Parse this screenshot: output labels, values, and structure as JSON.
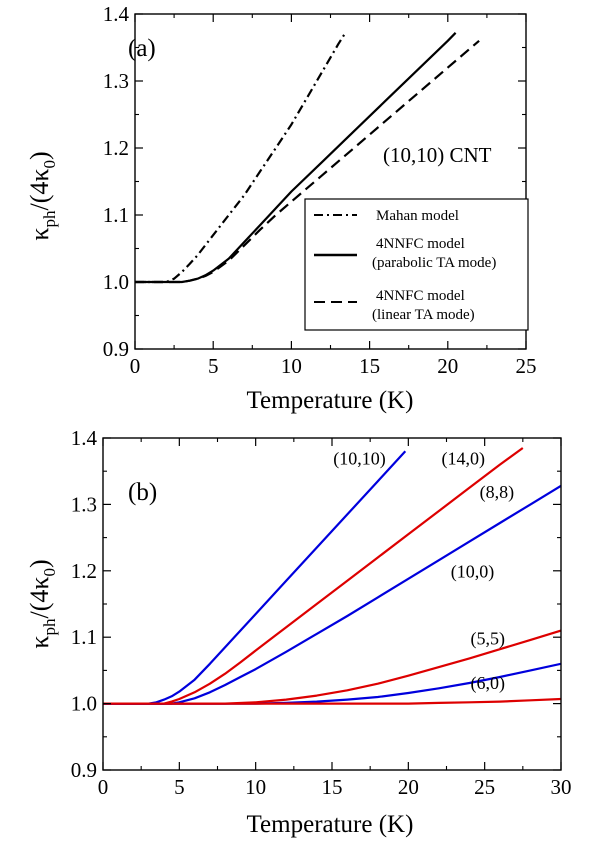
{
  "chart_data": [
    {
      "type": "line",
      "panel_label": "(a)",
      "annotation": "(10,10) CNT",
      "xlabel": "Temperature (K)",
      "ylabel": {
        "main": "κ",
        "sub": "ph",
        "tail": "/(4κ",
        "sub2": "0",
        "end": ")"
      },
      "xlim": [
        0,
        25
      ],
      "ylim": [
        0.9,
        1.4
      ],
      "xticks": [
        "0",
        "5",
        "10",
        "15",
        "20",
        "25"
      ],
      "yticks": [
        "0.9",
        "1.0",
        "1.1",
        "1.2",
        "1.3",
        "1.4"
      ],
      "legend_position": "lower-right",
      "series": [
        {
          "name": "Mahan model",
          "dash": "dashdot",
          "color": "#000000",
          "points": [
            [
              0,
              1.0
            ],
            [
              2,
              1.0
            ],
            [
              2.5,
              1.005
            ],
            [
              3,
              1.015
            ],
            [
              3.5,
              1.027
            ],
            [
              4,
              1.04
            ],
            [
              5,
              1.07
            ],
            [
              6,
              1.1
            ],
            [
              7,
              1.13
            ],
            [
              8,
              1.165
            ],
            [
              9,
              1.2
            ],
            [
              10,
              1.235
            ],
            [
              11,
              1.275
            ],
            [
              12,
              1.315
            ],
            [
              13,
              1.355
            ],
            [
              13.4,
              1.37
            ]
          ]
        },
        {
          "name": "4NNFC model",
          "name2": "(parabolic TA mode)",
          "dash": "solid",
          "color": "#000000",
          "points": [
            [
              0,
              1.0
            ],
            [
              3,
              1.0
            ],
            [
              3.5,
              1.002
            ],
            [
              4,
              1.005
            ],
            [
              4.5,
              1.01
            ],
            [
              5,
              1.017
            ],
            [
              6,
              1.035
            ],
            [
              7,
              1.06
            ],
            [
              8,
              1.085
            ],
            [
              9,
              1.11
            ],
            [
              10,
              1.135
            ],
            [
              12,
              1.18
            ],
            [
              14,
              1.225
            ],
            [
              16,
              1.27
            ],
            [
              18,
              1.315
            ],
            [
              20,
              1.36
            ],
            [
              20.5,
              1.372
            ]
          ]
        },
        {
          "name": "4NNFC model",
          "name2": "(linear TA mode)",
          "dash": "dashed",
          "color": "#000000",
          "points": [
            [
              0,
              1.0
            ],
            [
              3,
              1.0
            ],
            [
              3.5,
              1.002
            ],
            [
              4,
              1.005
            ],
            [
              4.5,
              1.009
            ],
            [
              5,
              1.015
            ],
            [
              6,
              1.032
            ],
            [
              7,
              1.055
            ],
            [
              8,
              1.078
            ],
            [
              9,
              1.1
            ],
            [
              10,
              1.12
            ],
            [
              12,
              1.16
            ],
            [
              14,
              1.2
            ],
            [
              16,
              1.24
            ],
            [
              18,
              1.28
            ],
            [
              20,
              1.32
            ],
            [
              22,
              1.36
            ]
          ]
        }
      ]
    },
    {
      "type": "line",
      "panel_label": "(b)",
      "xlabel": "Temperature (K)",
      "ylabel": {
        "main": "κ",
        "sub": "ph",
        "tail": "/(4κ",
        "sub2": "0",
        "end": ")"
      },
      "xlim": [
        0,
        30
      ],
      "ylim": [
        0.9,
        1.4
      ],
      "xticks": [
        "0",
        "5",
        "10",
        "15",
        "20",
        "25",
        "30"
      ],
      "yticks": [
        "0.9",
        "1.0",
        "1.1",
        "1.2",
        "1.3",
        "1.4"
      ],
      "series": [
        {
          "name": "(10,10)",
          "color": "#0000dd",
          "label_at": [
            16.8,
            1.36
          ],
          "points": [
            [
              0,
              1.0
            ],
            [
              3,
              1.0
            ],
            [
              3.5,
              1.002
            ],
            [
              4,
              1.006
            ],
            [
              4.5,
              1.011
            ],
            [
              5,
              1.018
            ],
            [
              6,
              1.036
            ],
            [
              7,
              1.06
            ],
            [
              8,
              1.085
            ],
            [
              9,
              1.11
            ],
            [
              10,
              1.135
            ],
            [
              12,
              1.185
            ],
            [
              14,
              1.235
            ],
            [
              16,
              1.285
            ],
            [
              18,
              1.335
            ],
            [
              19.8,
              1.38
            ]
          ]
        },
        {
          "name": "(14,0)",
          "color": "#dd0000",
          "label_at": [
            23.6,
            1.36
          ],
          "points": [
            [
              0,
              1.0
            ],
            [
              4,
              1.0
            ],
            [
              4.5,
              1.003
            ],
            [
              5,
              1.007
            ],
            [
              6,
              1.017
            ],
            [
              7,
              1.03
            ],
            [
              8,
              1.045
            ],
            [
              9,
              1.062
            ],
            [
              10,
              1.08
            ],
            [
              12,
              1.115
            ],
            [
              14,
              1.15
            ],
            [
              16,
              1.185
            ],
            [
              18,
              1.22
            ],
            [
              20,
              1.255
            ],
            [
              22,
              1.29
            ],
            [
              24,
              1.325
            ],
            [
              26,
              1.36
            ],
            [
              27.5,
              1.385
            ]
          ]
        },
        {
          "name": "(8,8)",
          "color": "#0000dd",
          "label_at": [
            25.8,
            1.31
          ],
          "points": [
            [
              0,
              1.0
            ],
            [
              4.5,
              1.0
            ],
            [
              5,
              1.002
            ],
            [
              6,
              1.008
            ],
            [
              7,
              1.017
            ],
            [
              8,
              1.028
            ],
            [
              9,
              1.04
            ],
            [
              10,
              1.052
            ],
            [
              12,
              1.078
            ],
            [
              14,
              1.105
            ],
            [
              16,
              1.132
            ],
            [
              18,
              1.16
            ],
            [
              20,
              1.188
            ],
            [
              22,
              1.216
            ],
            [
              24,
              1.244
            ],
            [
              26,
              1.272
            ],
            [
              28,
              1.3
            ],
            [
              30,
              1.328
            ]
          ]
        },
        {
          "name": "(10,0)",
          "color": "#dd0000",
          "label_at": [
            24.2,
            1.19
          ],
          "points": [
            [
              0,
              1.0
            ],
            [
              8,
              1.0
            ],
            [
              10,
              1.002
            ],
            [
              12,
              1.006
            ],
            [
              14,
              1.012
            ],
            [
              16,
              1.02
            ],
            [
              18,
              1.03
            ],
            [
              20,
              1.042
            ],
            [
              22,
              1.055
            ],
            [
              24,
              1.068
            ],
            [
              26,
              1.082
            ],
            [
              28,
              1.096
            ],
            [
              30,
              1.11
            ]
          ]
        },
        {
          "name": "(5,5)",
          "color": "#0000dd",
          "label_at": [
            25.2,
            1.089
          ],
          "points": [
            [
              0,
              1.0
            ],
            [
              10,
              1.0
            ],
            [
              12,
              1.001
            ],
            [
              14,
              1.003
            ],
            [
              16,
              1.006
            ],
            [
              18,
              1.01
            ],
            [
              20,
              1.016
            ],
            [
              22,
              1.023
            ],
            [
              24,
              1.031
            ],
            [
              26,
              1.04
            ],
            [
              28,
              1.05
            ],
            [
              30,
              1.06
            ]
          ]
        },
        {
          "name": "(6,0)",
          "color": "#dd0000",
          "label_at": [
            25.2,
            1.022
          ],
          "points": [
            [
              0,
              1.0
            ],
            [
              20,
              1.0
            ],
            [
              22,
              1.001
            ],
            [
              24,
              1.002
            ],
            [
              26,
              1.003
            ],
            [
              28,
              1.005
            ],
            [
              30,
              1.007
            ]
          ]
        }
      ]
    }
  ]
}
